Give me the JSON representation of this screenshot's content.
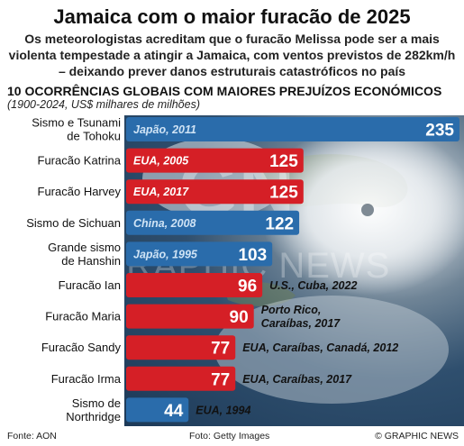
{
  "header": {
    "title": "Jamaica com o maior furacão de 2025",
    "subtitle": "Os meteorologistas acreditam que o furacão Melissa pode ser a mais violenta tempestade a atingir a Jamaica, com ventos previstos de 282km/h – deixando prever danos estruturais catastróficos no país"
  },
  "footer": {
    "source": "Fonte: AON",
    "photo": "Foto: Getty Images",
    "credit": "© GRAPHIC NEWS"
  },
  "watermark": {
    "logo": "GN",
    "text": "GRAPHIC NEWS"
  },
  "colors": {
    "red": "#d51f26",
    "blue": "#2a6cab",
    "light_blue_text": "#cfe3f5"
  },
  "chart_data": {
    "type": "bar",
    "orientation": "horizontal",
    "title": "10 OCORRÊNCIAS GLOBAIS COM MAIORES PREJUÍZOS ECONÓMICOS",
    "subtitle": "(1900-2024, US$ milhares de milhões)",
    "xlim": [
      0,
      235
    ],
    "grid": false,
    "categories": [
      [
        "Sismo e Tsunami",
        "de Tohoku"
      ],
      [
        "Furacão Katrina"
      ],
      [
        "Furacão Harvey"
      ],
      [
        "Sismo de Sichuan"
      ],
      [
        "Grande sismo",
        "de Hanshin"
      ],
      [
        "Furacão Ian"
      ],
      [
        "Furacão Maria"
      ],
      [
        "Furacão Sandy"
      ],
      [
        "Furacão Irma"
      ],
      [
        "Sismo de",
        "Northridge"
      ]
    ],
    "values": [
      235,
      125,
      125,
      122,
      103,
      96,
      90,
      77,
      77,
      44
    ],
    "location_labels": [
      [
        "Japão, 2011"
      ],
      [
        "EUA, 2005"
      ],
      [
        "EUA, 2017"
      ],
      [
        "China, 2008"
      ],
      [
        "Japão, 1995"
      ],
      [
        "U.S., Cuba, 2022"
      ],
      [
        "Porto Rico,",
        "Caraíbas, 2017"
      ],
      [
        "EUA, Caraíbas, Canadá, 2012"
      ],
      [
        "EUA, Caraíbas, 2017"
      ],
      [
        "EUA, 1994"
      ]
    ],
    "event_kind": [
      "earthquake",
      "hurricane",
      "hurricane",
      "earthquake",
      "earthquake",
      "hurricane",
      "hurricane",
      "hurricane",
      "hurricane",
      "earthquake"
    ]
  }
}
